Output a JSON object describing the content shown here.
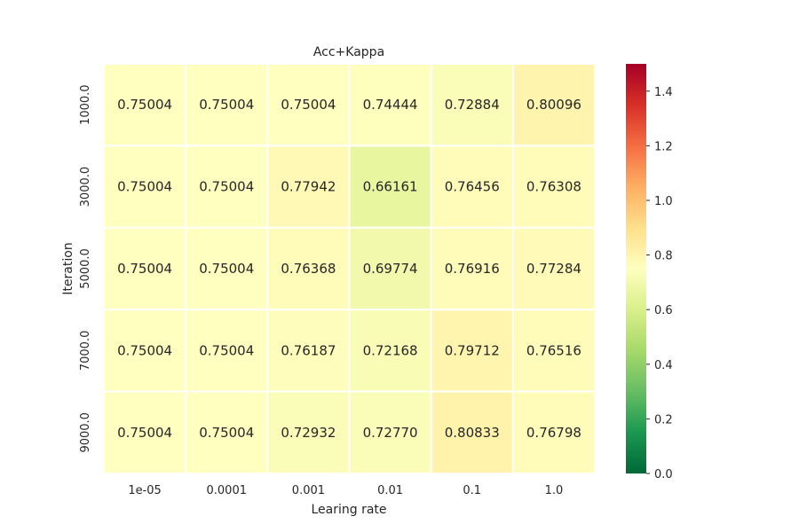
{
  "chart_data": {
    "type": "heatmap",
    "title": "Acc+Kappa",
    "xlabel": "Learing rate",
    "ylabel": "Iteration",
    "x_categories": [
      "1e-05",
      "0.0001",
      "0.001",
      "0.01",
      "0.1",
      "1.0"
    ],
    "y_categories": [
      "1000.0",
      "3000.0",
      "5000.0",
      "7000.0",
      "9000.0"
    ],
    "values": [
      [
        0.75004,
        0.75004,
        0.75004,
        0.74444,
        0.72884,
        0.80096
      ],
      [
        0.75004,
        0.75004,
        0.77942,
        0.66161,
        0.76456,
        0.76308
      ],
      [
        0.75004,
        0.75004,
        0.76368,
        0.69774,
        0.76916,
        0.77284
      ],
      [
        0.75004,
        0.75004,
        0.76187,
        0.72168,
        0.79712,
        0.76516
      ],
      [
        0.75004,
        0.75004,
        0.72932,
        0.7277,
        0.80833,
        0.76798
      ]
    ],
    "cell_labels": [
      [
        "0.75004",
        "0.75004",
        "0.75004",
        "0.74444",
        "0.72884",
        "0.80096"
      ],
      [
        "0.75004",
        "0.75004",
        "0.77942",
        "0.66161",
        "0.76456",
        "0.76308"
      ],
      [
        "0.75004",
        "0.75004",
        "0.76368",
        "0.69774",
        "0.76916",
        "0.77284"
      ],
      [
        "0.75004",
        "0.75004",
        "0.76187",
        "0.72168",
        "0.79712",
        "0.76516"
      ],
      [
        "0.75004",
        "0.75004",
        "0.72932",
        "0.72770",
        "0.80833",
        "0.76798"
      ]
    ],
    "colorscale": "RdYlGn_r",
    "vmin": 0.0,
    "vmax": 1.5,
    "colorbar_ticks": [
      "0.0",
      "0.2",
      "0.4",
      "0.6",
      "0.8",
      "1.0",
      "1.2",
      "1.4"
    ]
  }
}
